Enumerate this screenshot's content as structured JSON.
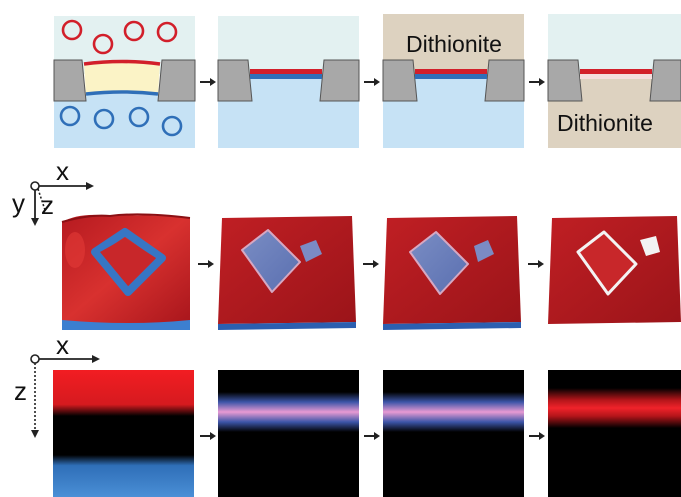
{
  "row1": {
    "panel3_label": "Dithionite",
    "panel4_label": "Dithionite"
  },
  "axes_3d": {
    "x": "x",
    "y": "y",
    "z": "z"
  },
  "axes_2d": {
    "x": "x",
    "z": "z"
  },
  "colors": {
    "red_dye": "#d21f2a",
    "blue_dye": "#2f6fb8",
    "membrane_fill": "#fbf3c6",
    "solution_top": "#e3f1f1",
    "solution_bottom": "#c6e2f5",
    "dithionite_bg": "#ddd2c0",
    "support": "#a8a8a8",
    "surface_red": "#c62026",
    "surface_blue": "#3776c4",
    "profile_bg": "#000000",
    "arrow": "#222222"
  },
  "icons": {
    "step_arrow": "arrow-right-icon",
    "circle_marker": "circle-outline-icon"
  }
}
